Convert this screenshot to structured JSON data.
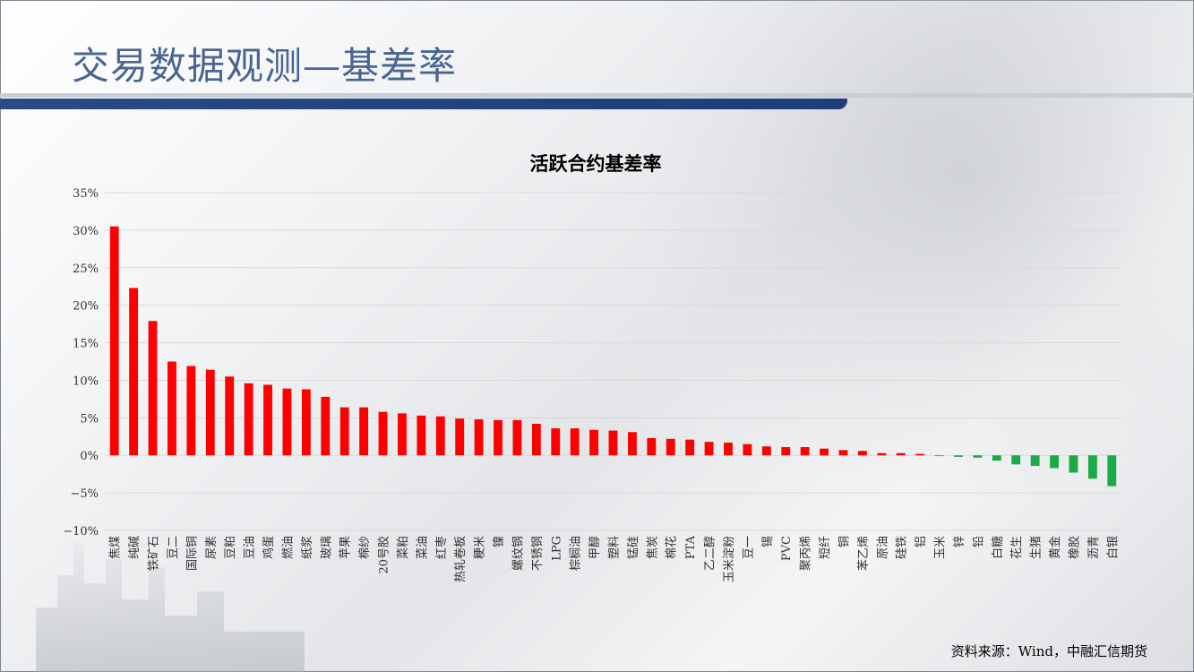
{
  "page": {
    "title": "交易数据观测—基差率",
    "source": "资料来源：Wind，中融汇信期货"
  },
  "colors": {
    "positive": "#ff0000",
    "negative": "#1aaa46",
    "title": "#4a6592",
    "band": "#2b4a86"
  },
  "chart_data": {
    "type": "bar",
    "title": "活跃合约基差率",
    "xlabel": "",
    "ylabel": "",
    "ylim": [
      -0.1,
      0.35
    ],
    "y_ticks": [
      "−10%",
      "−5%",
      "0%",
      "5%",
      "10%",
      "15%",
      "20%",
      "25%",
      "30%",
      "35%"
    ],
    "grid": true,
    "legend": "none",
    "categories": [
      "焦煤",
      "纯碱",
      "铁矿石",
      "豆二",
      "国际铜",
      "尿素",
      "豆粕",
      "豆油",
      "鸡蛋",
      "燃油",
      "纸浆",
      "玻璃",
      "苹果",
      "棉纱",
      "20号胶",
      "菜粕",
      "菜油",
      "红枣",
      "热轧卷板",
      "粳米",
      "镍",
      "螺纹钢",
      "不锈钢",
      "LPG",
      "棕榈油",
      "甲醇",
      "塑料",
      "锰硅",
      "焦炭",
      "棉花",
      "PTA",
      "乙二醇",
      "玉米淀粉",
      "豆一",
      "锡",
      "PVC",
      "聚丙烯",
      "短纤",
      "铜",
      "苯乙烯",
      "原油",
      "硅铁",
      "铝",
      "玉米",
      "锌",
      "铅",
      "白糖",
      "花生",
      "生猪",
      "黄金",
      "橡胶",
      "沥青",
      "白银"
    ],
    "values": [
      0.305,
      0.223,
      0.179,
      0.125,
      0.119,
      0.114,
      0.105,
      0.096,
      0.094,
      0.089,
      0.088,
      0.078,
      0.064,
      0.064,
      0.058,
      0.056,
      0.053,
      0.052,
      0.049,
      0.048,
      0.047,
      0.047,
      0.042,
      0.036,
      0.036,
      0.034,
      0.033,
      0.031,
      0.023,
      0.022,
      0.021,
      0.018,
      0.017,
      0.015,
      0.012,
      0.011,
      0.011,
      0.009,
      0.007,
      0.006,
      0.003,
      0.003,
      0.002,
      -0.001,
      -0.002,
      -0.003,
      -0.007,
      -0.012,
      -0.014,
      -0.017,
      -0.023,
      -0.031,
      -0.041
    ]
  }
}
